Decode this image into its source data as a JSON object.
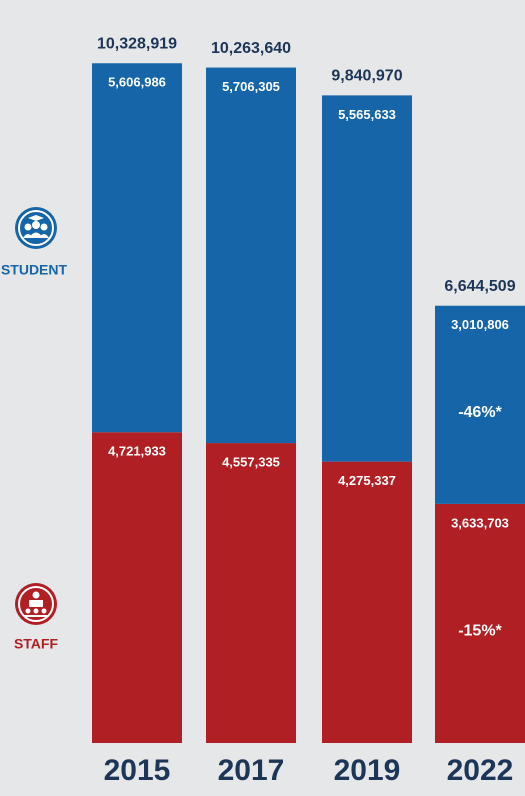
{
  "chart_data": {
    "type": "stacked_bar",
    "categories": [
      "2015",
      "2017",
      "2019",
      "2022"
    ],
    "series": [
      {
        "name": "STAFF",
        "color": "#b01f24",
        "values": [
          4721933,
          4557335,
          4275337,
          3633703
        ],
        "value_labels": [
          "4,721,933",
          "4,557,335",
          "4,275,337",
          "3,633,703"
        ]
      },
      {
        "name": "STUDENT",
        "color": "#1565a8",
        "values": [
          5606986,
          5706305,
          5565633,
          3010806
        ],
        "value_labels": [
          "5,606,986",
          "5,706,305",
          "5,565,633",
          "3,010,806"
        ]
      }
    ],
    "total_labels": [
      "10,328,919",
      "10,263,640",
      "9,840,970",
      "6,644,509"
    ],
    "annotations": [
      {
        "text": "-46%*",
        "series": 1,
        "category": 3
      },
      {
        "text": "-15%*",
        "series": 0,
        "category": 3
      }
    ],
    "ylim": [
      0,
      10500000
    ]
  }
}
